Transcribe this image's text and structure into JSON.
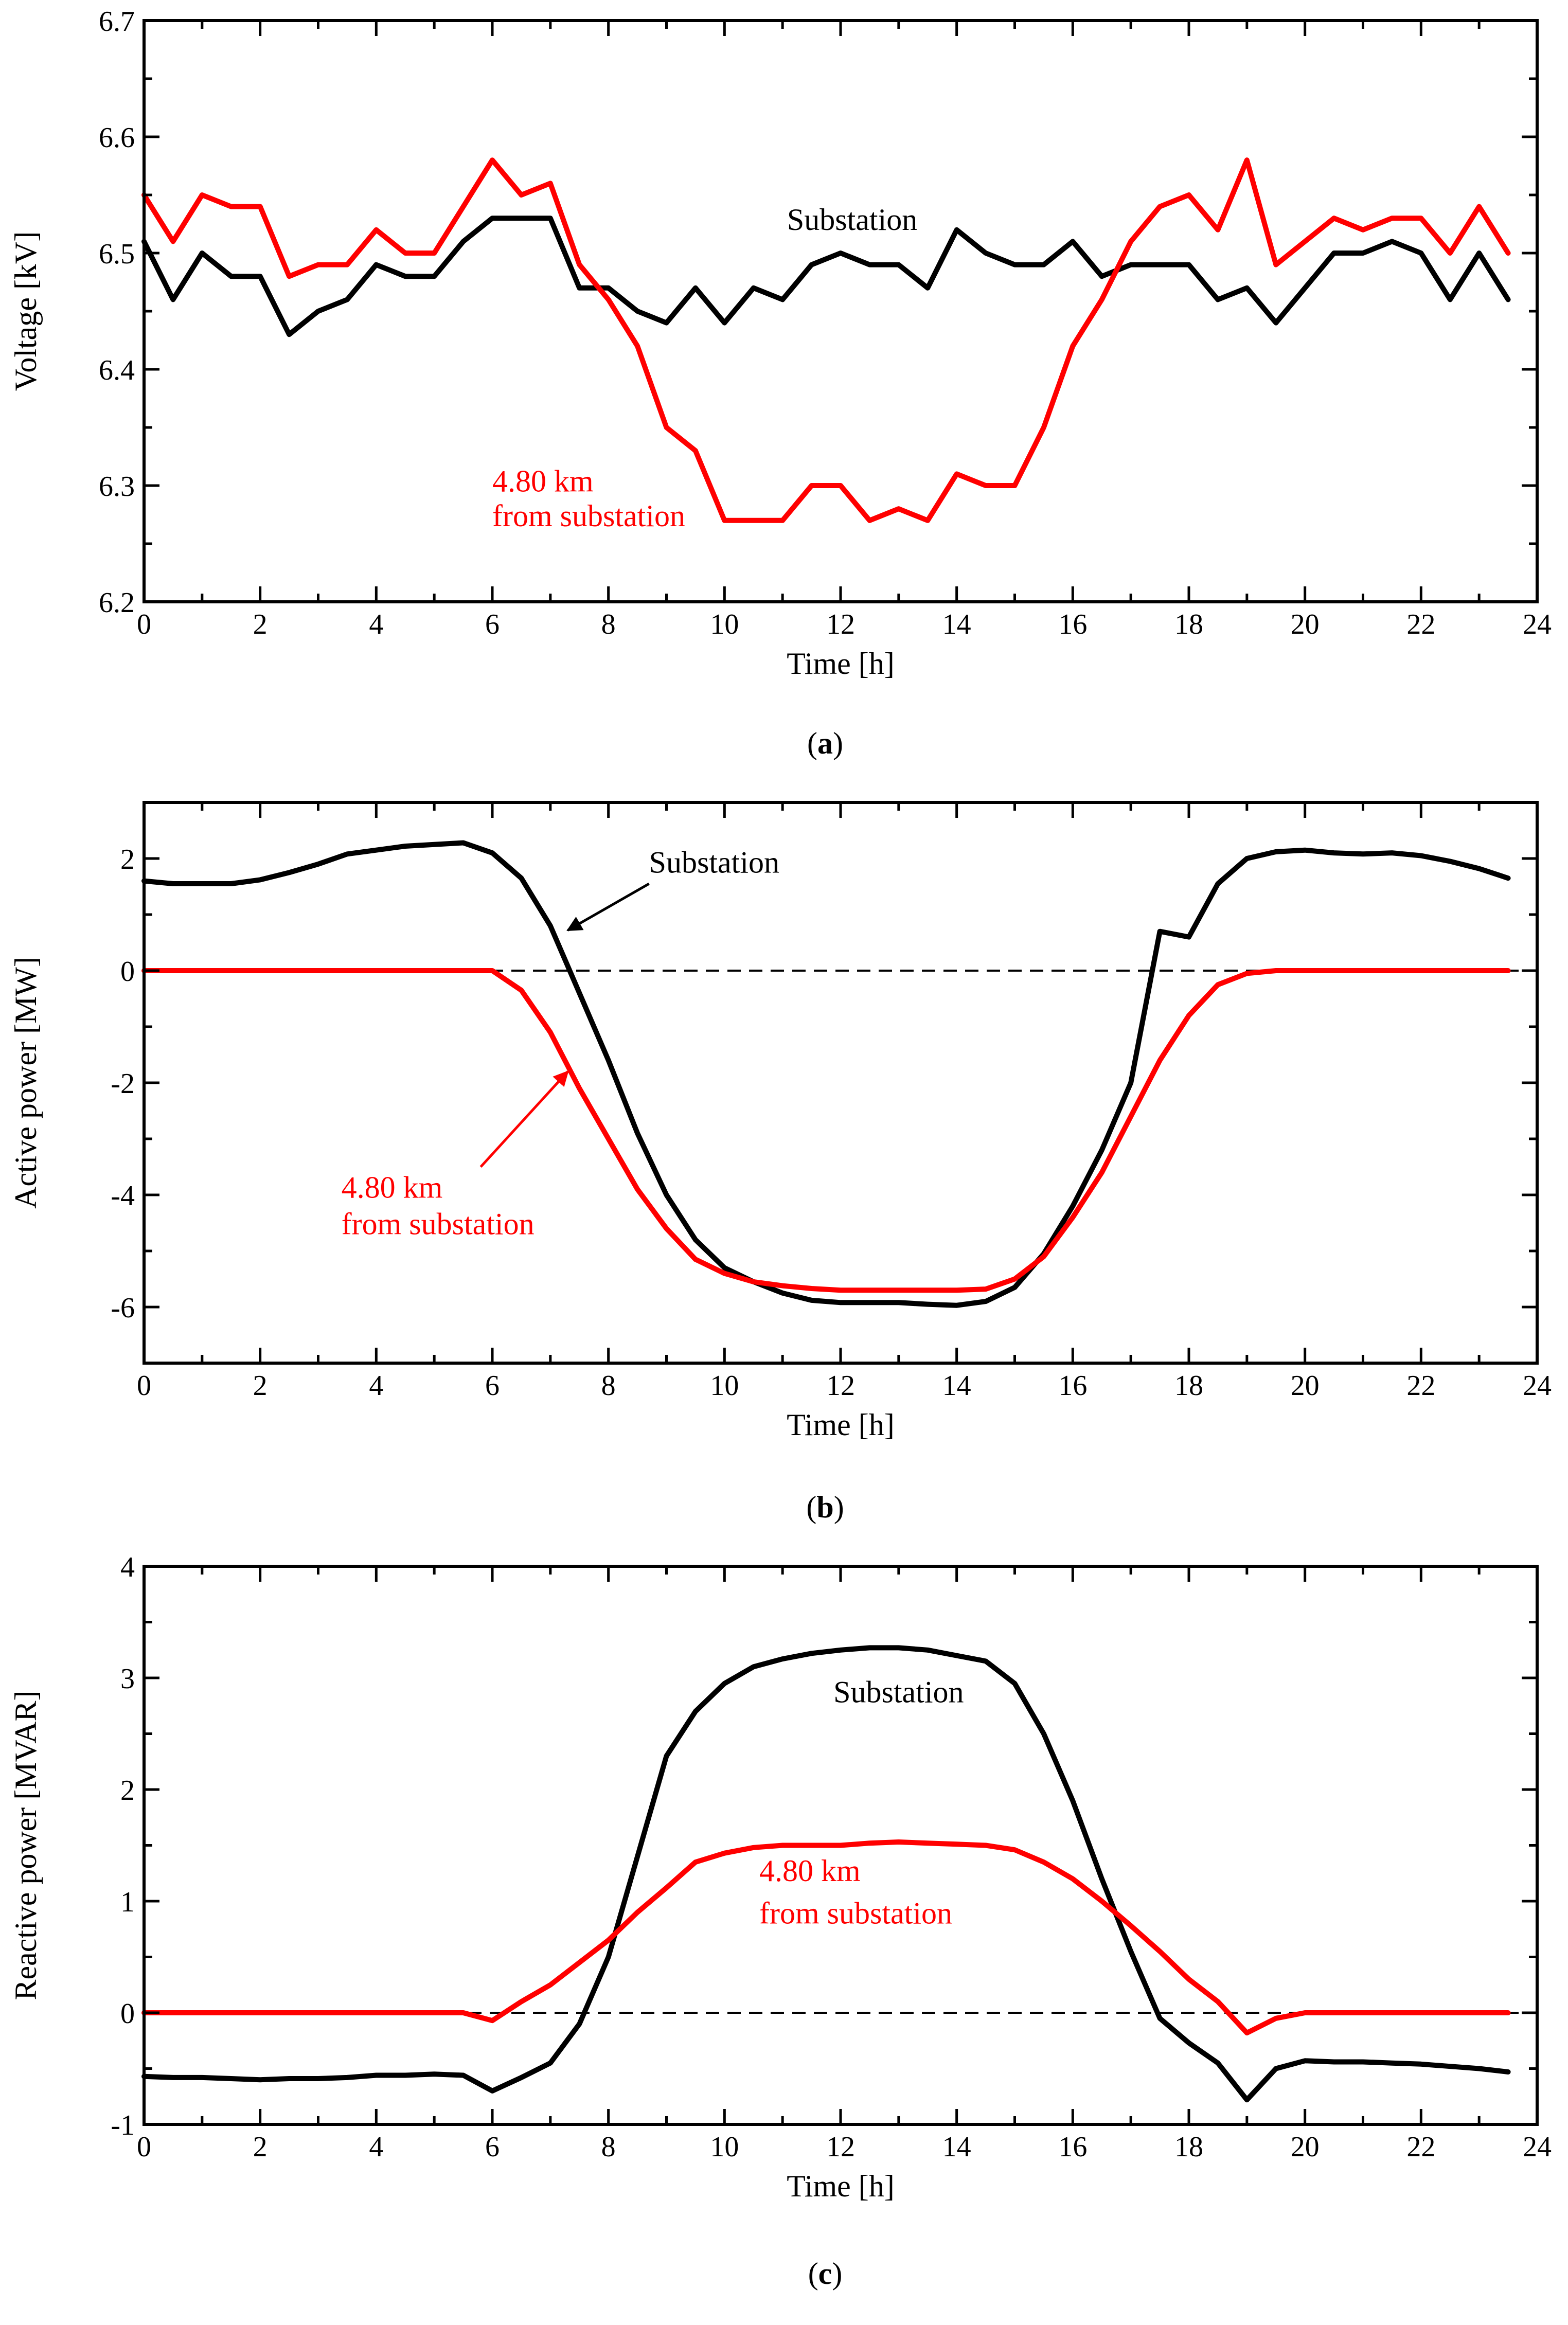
{
  "colors": {
    "substation": "#000000",
    "remote": "#ff0000",
    "axis": "#000000",
    "zero_line": "#000000"
  },
  "chart_data": [
    {
      "type": "line",
      "panel": "a",
      "caption": {
        "open": "(",
        "letter": "a",
        "close": ")"
      },
      "xlabel": "Time [h]",
      "ylabel": "Voltage [kV]",
      "xlim": [
        0,
        24
      ],
      "ylim": [
        6.2,
        6.7
      ],
      "xticks": [
        "0",
        "2",
        "4",
        "6",
        "8",
        "10",
        "12",
        "14",
        "16",
        "18",
        "20",
        "22",
        "24"
      ],
      "xtick_values": [
        0,
        2,
        4,
        6,
        8,
        10,
        12,
        14,
        16,
        18,
        20,
        22,
        24
      ],
      "yticks": [
        "6.2",
        "6.3",
        "6.4",
        "6.5",
        "6.6",
        "6.7"
      ],
      "ytick_values": [
        6.2,
        6.3,
        6.4,
        6.5,
        6.6,
        6.7
      ],
      "zero_line": false,
      "series": [
        {
          "name": "Substation",
          "color": "#000000",
          "x": [
            0,
            0.5,
            1,
            1.5,
            2,
            2.5,
            3,
            3.5,
            4,
            4.5,
            5,
            5.5,
            6,
            6.5,
            7,
            7.5,
            8,
            8.5,
            9,
            9.5,
            10,
            10.5,
            11,
            11.5,
            12,
            12.5,
            13,
            13.5,
            14,
            14.5,
            15,
            15.5,
            16,
            16.5,
            17,
            17.5,
            18,
            18.5,
            19,
            19.5,
            20,
            20.5,
            21,
            21.5,
            22,
            22.5,
            23,
            23.5
          ],
          "values": [
            6.51,
            6.46,
            6.5,
            6.48,
            6.48,
            6.43,
            6.45,
            6.46,
            6.49,
            6.48,
            6.48,
            6.51,
            6.53,
            6.53,
            6.53,
            6.47,
            6.47,
            6.45,
            6.44,
            6.47,
            6.44,
            6.47,
            6.46,
            6.49,
            6.5,
            6.49,
            6.49,
            6.47,
            6.52,
            6.5,
            6.49,
            6.49,
            6.51,
            6.48,
            6.49,
            6.49,
            6.49,
            6.46,
            6.47,
            6.44,
            6.47,
            6.5,
            6.5,
            6.51,
            6.5,
            6.46,
            6.5,
            6.46
          ]
        },
        {
          "name": "4.80 km from substation",
          "color": "#ff0000",
          "x": [
            0,
            0.5,
            1,
            1.5,
            2,
            2.5,
            3,
            3.5,
            4,
            4.5,
            5,
            5.5,
            6,
            6.5,
            7,
            7.5,
            8,
            8.5,
            9,
            9.5,
            10,
            10.5,
            11,
            11.5,
            12,
            12.5,
            13,
            13.5,
            14,
            14.5,
            15,
            15.5,
            16,
            16.5,
            17,
            17.5,
            18,
            18.5,
            19,
            19.5,
            20,
            20.5,
            21,
            21.5,
            22,
            22.5,
            23,
            23.5
          ],
          "values": [
            6.55,
            6.51,
            6.55,
            6.54,
            6.54,
            6.48,
            6.49,
            6.49,
            6.52,
            6.5,
            6.5,
            6.54,
            6.58,
            6.55,
            6.56,
            6.49,
            6.46,
            6.42,
            6.35,
            6.33,
            6.27,
            6.27,
            6.27,
            6.3,
            6.3,
            6.27,
            6.28,
            6.27,
            6.31,
            6.3,
            6.3,
            6.35,
            6.42,
            6.46,
            6.51,
            6.54,
            6.55,
            6.52,
            6.58,
            6.49,
            6.51,
            6.53,
            6.52,
            6.53,
            6.53,
            6.5,
            6.54,
            6.5
          ]
        }
      ],
      "annotations": [
        {
          "text": "Substation",
          "color": "#000000",
          "at": [
            12.2,
            6.52
          ],
          "anchor": "middle"
        },
        {
          "text": "4.80 km",
          "color": "#ff0000",
          "at": [
            6.0,
            6.295
          ],
          "anchor": "start"
        },
        {
          "text": "from substation",
          "color": "#ff0000",
          "at": [
            6.0,
            6.265
          ],
          "anchor": "start"
        }
      ],
      "arrows": []
    },
    {
      "type": "line",
      "panel": "b",
      "caption": {
        "open": "(",
        "letter": "b",
        "close": ")"
      },
      "xlabel": "Time [h]",
      "ylabel": "Active power [MW]",
      "xlim": [
        0,
        24
      ],
      "ylim": [
        -7,
        3
      ],
      "xticks": [
        "0",
        "2",
        "4",
        "6",
        "8",
        "10",
        "12",
        "14",
        "16",
        "18",
        "20",
        "22",
        "24"
      ],
      "xtick_values": [
        0,
        2,
        4,
        6,
        8,
        10,
        12,
        14,
        16,
        18,
        20,
        22,
        24
      ],
      "yticks": [
        "-6",
        "-4",
        "-2",
        "0",
        "2"
      ],
      "ytick_values": [
        -6,
        -4,
        -2,
        0,
        2
      ],
      "zero_line": true,
      "series": [
        {
          "name": "Substation",
          "color": "#000000",
          "x": [
            0,
            0.5,
            1,
            1.5,
            2,
            2.5,
            3,
            3.5,
            4,
            4.5,
            5,
            5.5,
            6,
            6.5,
            7,
            7.5,
            8,
            8.5,
            9,
            9.5,
            10,
            10.5,
            11,
            11.5,
            12,
            12.5,
            13,
            13.5,
            14,
            14.5,
            15,
            15.5,
            16,
            16.5,
            17,
            17.5,
            18,
            18.5,
            19,
            19.5,
            20,
            20.5,
            21,
            21.5,
            22,
            22.5,
            23,
            23.5
          ],
          "values": [
            1.6,
            1.55,
            1.55,
            1.55,
            1.62,
            1.75,
            1.9,
            2.08,
            2.15,
            2.22,
            2.25,
            2.28,
            2.1,
            1.65,
            0.8,
            -0.4,
            -1.6,
            -2.9,
            -4.0,
            -4.8,
            -5.3,
            -5.55,
            -5.75,
            -5.88,
            -5.92,
            -5.92,
            -5.92,
            -5.95,
            -5.97,
            -5.9,
            -5.65,
            -5.05,
            -4.2,
            -3.2,
            -2.0,
            0.7,
            0.6,
            1.55,
            2.0,
            2.12,
            2.15,
            2.1,
            2.08,
            2.1,
            2.05,
            1.95,
            1.82,
            1.65
          ]
        },
        {
          "name": "4.80 km from substation",
          "color": "#ff0000",
          "x": [
            0,
            0.5,
            1,
            1.5,
            2,
            2.5,
            3,
            3.5,
            4,
            4.5,
            5,
            5.5,
            6,
            6.5,
            7,
            7.5,
            8,
            8.5,
            9,
            9.5,
            10,
            10.5,
            11,
            11.5,
            12,
            12.5,
            13,
            13.5,
            14,
            14.5,
            15,
            15.5,
            16,
            16.5,
            17,
            17.5,
            18,
            18.5,
            19,
            19.5,
            20,
            20.5,
            21,
            21.5,
            22,
            22.5,
            23,
            23.5
          ],
          "values": [
            0,
            0,
            0,
            0,
            0,
            0,
            0,
            0,
            0,
            0,
            0,
            0,
            0,
            -0.35,
            -1.1,
            -2.1,
            -3.0,
            -3.9,
            -4.6,
            -5.15,
            -5.4,
            -5.55,
            -5.62,
            -5.67,
            -5.7,
            -5.7,
            -5.7,
            -5.7,
            -5.7,
            -5.68,
            -5.5,
            -5.1,
            -4.4,
            -3.6,
            -2.6,
            -1.6,
            -0.8,
            -0.25,
            -0.05,
            0,
            0,
            0,
            0,
            0,
            0,
            0,
            0,
            0
          ]
        }
      ],
      "annotations": [
        {
          "text": "Substation",
          "color": "#000000",
          "at": [
            8.7,
            1.75
          ],
          "anchor": "start"
        },
        {
          "text": "4.80 km",
          "color": "#ff0000",
          "at": [
            3.4,
            -4.05
          ],
          "anchor": "start"
        },
        {
          "text": "from substation",
          "color": "#ff0000",
          "at": [
            3.4,
            -4.7
          ],
          "anchor": "start"
        }
      ],
      "arrows": [
        {
          "color": "#000000",
          "from": [
            8.7,
            1.55
          ],
          "to": [
            7.3,
            0.72
          ]
        },
        {
          "color": "#ff0000",
          "from": [
            5.8,
            -3.5
          ],
          "to": [
            7.3,
            -1.8
          ]
        }
      ]
    },
    {
      "type": "line",
      "panel": "c",
      "caption": {
        "open": "(",
        "letter": "c",
        "close": ")"
      },
      "xlabel": "Time [h]",
      "ylabel": "Reactive power [MVAR]",
      "xlim": [
        0,
        24
      ],
      "ylim": [
        -1,
        4
      ],
      "xticks": [
        "0",
        "2",
        "4",
        "6",
        "8",
        "10",
        "12",
        "14",
        "16",
        "18",
        "20",
        "22",
        "24"
      ],
      "xtick_values": [
        0,
        2,
        4,
        6,
        8,
        10,
        12,
        14,
        16,
        18,
        20,
        22,
        24
      ],
      "yticks": [
        "-1",
        "0",
        "1",
        "2",
        "3",
        "4"
      ],
      "ytick_values": [
        -1,
        0,
        1,
        2,
        3,
        4
      ],
      "zero_line": true,
      "series": [
        {
          "name": "Substation",
          "color": "#000000",
          "x": [
            0,
            0.5,
            1,
            1.5,
            2,
            2.5,
            3,
            3.5,
            4,
            4.5,
            5,
            5.5,
            6,
            6.5,
            7,
            7.5,
            8,
            8.5,
            9,
            9.5,
            10,
            10.5,
            11,
            11.5,
            12,
            12.5,
            13,
            13.5,
            14,
            14.5,
            15,
            15.5,
            16,
            16.5,
            17,
            17.5,
            18,
            18.5,
            19,
            19.5,
            20,
            20.5,
            21,
            21.5,
            22,
            22.5,
            23,
            23.5
          ],
          "values": [
            -0.57,
            -0.58,
            -0.58,
            -0.59,
            -0.6,
            -0.59,
            -0.59,
            -0.58,
            -0.56,
            -0.56,
            -0.55,
            -0.56,
            -0.7,
            -0.58,
            -0.45,
            -0.1,
            0.5,
            1.4,
            2.3,
            2.7,
            2.95,
            3.1,
            3.17,
            3.22,
            3.25,
            3.27,
            3.27,
            3.25,
            3.2,
            3.15,
            2.95,
            2.5,
            1.9,
            1.2,
            0.55,
            -0.05,
            -0.27,
            -0.45,
            -0.78,
            -0.5,
            -0.43,
            -0.44,
            -0.44,
            -0.45,
            -0.46,
            -0.48,
            -0.5,
            -0.53
          ]
        },
        {
          "name": "4.80 km from substation",
          "color": "#ff0000",
          "x": [
            0,
            0.5,
            1,
            1.5,
            2,
            2.5,
            3,
            3.5,
            4,
            4.5,
            5,
            5.5,
            6,
            6.5,
            7,
            7.5,
            8,
            8.5,
            9,
            9.5,
            10,
            10.5,
            11,
            11.5,
            12,
            12.5,
            13,
            13.5,
            14,
            14.5,
            15,
            15.5,
            16,
            16.5,
            17,
            17.5,
            18,
            18.5,
            19,
            19.5,
            20,
            20.5,
            21,
            21.5,
            22,
            22.5,
            23,
            23.5
          ],
          "values": [
            0,
            0,
            0,
            0,
            0,
            0,
            0,
            0,
            0,
            0,
            0,
            0,
            -0.07,
            0.1,
            0.25,
            0.45,
            0.65,
            0.9,
            1.12,
            1.35,
            1.43,
            1.48,
            1.5,
            1.5,
            1.5,
            1.52,
            1.53,
            1.52,
            1.51,
            1.5,
            1.46,
            1.35,
            1.2,
            1.0,
            0.78,
            0.55,
            0.3,
            0.1,
            -0.18,
            -0.05,
            0,
            0,
            0,
            0,
            0,
            0,
            0,
            0
          ]
        }
      ],
      "annotations": [
        {
          "text": "Substation",
          "color": "#000000",
          "at": [
            13.0,
            2.78
          ],
          "anchor": "middle"
        },
        {
          "text": "4.80 km",
          "color": "#ff0000",
          "at": [
            10.6,
            1.18
          ],
          "anchor": "start"
        },
        {
          "text": "from substation",
          "color": "#ff0000",
          "at": [
            10.6,
            0.8
          ],
          "anchor": "start"
        }
      ],
      "arrows": []
    }
  ]
}
